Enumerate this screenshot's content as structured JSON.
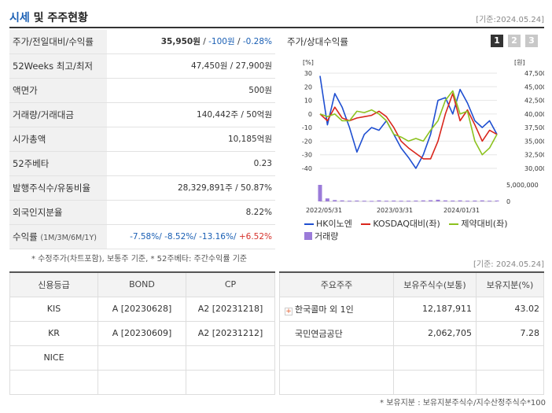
{
  "header": {
    "title_accent": "시세",
    "title_rest": " 및 주주현황",
    "basis": "[기준:2024.05.24]"
  },
  "info": {
    "price_label": "주가/전일대비/수익률",
    "price": "35,950원",
    "change": "-100원",
    "rate": "-0.28%",
    "w52_label": "52Weeks 최고/최저",
    "w52_value": "47,450원 / 27,900원",
    "par_label": "액면가",
    "par_value": "500원",
    "volume_label": "거래량/거래대금",
    "volume_value": "140,442주 / 50억원",
    "mcap_label": "시가총액",
    "mcap_value": "10,185억원",
    "beta_label": "52주베타",
    "beta_value": "0.23",
    "shares_label": "발행주식수/유동비율",
    "shares_value": "28,329,891주 / 50.87%",
    "foreign_label": "외국인지분율",
    "foreign_value": "8.22%",
    "return_label": "수익률",
    "return_period": "(1M/3M/6M/1Y)",
    "return_1m": "-7.58%/",
    "return_3m": "-8.52%/",
    "return_6m": "-13.16%/",
    "return_1y": "+6.52%"
  },
  "note_left": "* 수정주가(차트포함), 보통주 기준, * 52주베타: 주간수익률 기준",
  "chart_panel": {
    "title": "주가/상대수익률",
    "pages": [
      "1",
      "2",
      "3"
    ],
    "active_page": "1",
    "legend": [
      "HK이노엔",
      "KOSDAQ대비(좌)",
      "제약대비(좌)",
      "거래량"
    ]
  },
  "chart_data": {
    "type": "line",
    "left_unit": "[%]",
    "right_unit": "[원]",
    "left_ticks": [
      "30",
      "20",
      "10",
      "0",
      "-10",
      "-20",
      "-30",
      "-40"
    ],
    "right_ticks": [
      "47,500",
      "45,000",
      "42,500",
      "40,000",
      "37,500",
      "35,000",
      "32,500",
      "30,000"
    ],
    "volume_ticks": [
      "5,000,000",
      "0"
    ],
    "x_ticks": [
      "2022/05/31",
      "2023/03/31",
      "2024/01/31"
    ],
    "ylim_left": [
      -40,
      30
    ],
    "ylim_right": [
      30000,
      47500
    ],
    "series": [
      {
        "name": "HK이노엔",
        "axis": "left",
        "color": "#1f4fd1",
        "values": [
          28,
          -8,
          15,
          5,
          -10,
          -28,
          -15,
          -10,
          -12,
          -5,
          -15,
          -25,
          -32,
          -40,
          -30,
          -15,
          10,
          12,
          0,
          18,
          8,
          -5,
          -10,
          -5,
          -15
        ]
      },
      {
        "name": "KOSDAQ대비(좌)",
        "axis": "left",
        "color": "#d9261c",
        "values": [
          0,
          -5,
          5,
          -3,
          -5,
          -3,
          -2,
          -1,
          2,
          -2,
          -10,
          -20,
          -25,
          -29,
          -33,
          -33,
          -20,
          0,
          15,
          -5,
          3,
          -8,
          -20,
          -12,
          -15
        ]
      },
      {
        "name": "제약대비(좌)",
        "axis": "left",
        "color": "#8cc21f",
        "values": [
          0,
          -2,
          0,
          -5,
          -5,
          2,
          1,
          3,
          0,
          -5,
          -15,
          -17,
          -20,
          -18,
          -20,
          -12,
          -5,
          10,
          17,
          0,
          2,
          -20,
          -30,
          -25,
          -15
        ]
      }
    ],
    "volume": [
      6200000,
      900000,
      400000,
      300000,
      200000,
      250000,
      200000,
      150000,
      300000,
      200000,
      250000,
      200000,
      200000,
      250000,
      300000,
      350000,
      500000,
      300000,
      250000,
      300000,
      200000,
      250000,
      300000,
      200000,
      250000
    ],
    "colors": {
      "volume": "#9b7bd9"
    }
  },
  "basis2": "[기준: 2024.05.24]",
  "credit": {
    "headers": [
      "신용등급",
      "BOND",
      "CP"
    ],
    "rows": [
      [
        "KIS",
        "A  [20230628]",
        "A2  [20231218]"
      ],
      [
        "KR",
        "A  [20230609]",
        "A2  [20231212]"
      ],
      [
        "NICE",
        "",
        ""
      ],
      [
        "",
        "",
        ""
      ]
    ]
  },
  "holders": {
    "headers": [
      "주요주주",
      "보유주식수(보통)",
      "보유지분(%)"
    ],
    "rows": [
      [
        "한국콜마 외 1인",
        "12,187,911",
        "43.02"
      ],
      [
        "국민연금공단",
        "2,062,705",
        "7.28"
      ],
      [
        "",
        "",
        ""
      ],
      [
        "",
        "",
        ""
      ]
    ]
  },
  "note_right": "* 보유지분 : 보유지분주식수/지수산정주식수*100"
}
